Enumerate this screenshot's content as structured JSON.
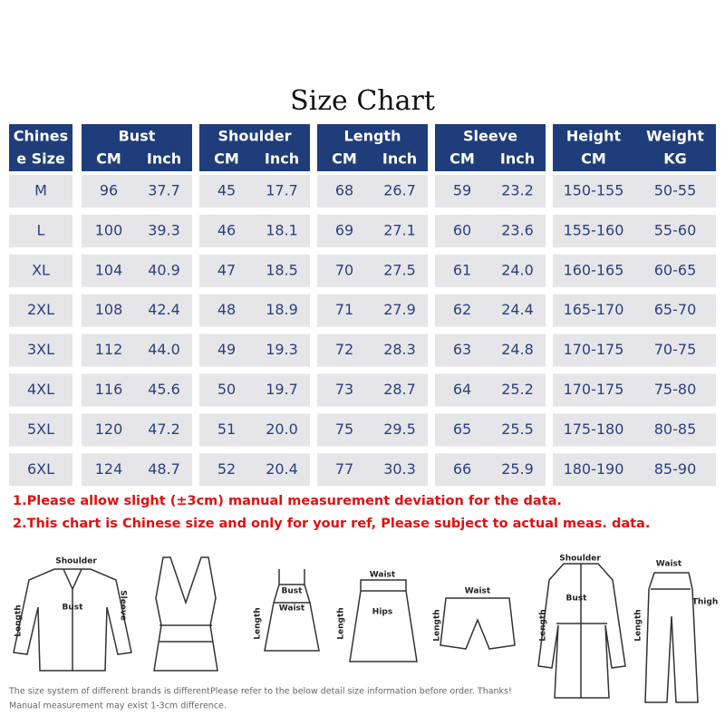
{
  "title": "Size Chart",
  "table": {
    "header_top": [
      "Chines",
      "Bust",
      "Shoulder",
      "Length",
      "Sleeve",
      "Height",
      "Weight"
    ],
    "header_bottom": [
      "e Size",
      "CM",
      "Inch",
      "CM",
      "Inch",
      "CM",
      "Inch",
      "CM",
      "Inch",
      "CM",
      "KG"
    ],
    "rows": [
      [
        "M",
        "96",
        "37.7",
        "45",
        "17.7",
        "68",
        "26.7",
        "59",
        "23.2",
        "150-155",
        "50-55"
      ],
      [
        "L",
        "100",
        "39.3",
        "46",
        "18.1",
        "69",
        "27.1",
        "60",
        "23.6",
        "155-160",
        "55-60"
      ],
      [
        "XL",
        "104",
        "40.9",
        "47",
        "18.5",
        "70",
        "27.5",
        "61",
        "24.0",
        "160-165",
        "60-65"
      ],
      [
        "2XL",
        "108",
        "42.4",
        "48",
        "18.9",
        "71",
        "27.9",
        "62",
        "24.4",
        "165-170",
        "65-70"
      ],
      [
        "3XL",
        "112",
        "44.0",
        "49",
        "19.3",
        "72",
        "28.3",
        "63",
        "24.8",
        "170-175",
        "70-75"
      ],
      [
        "4XL",
        "116",
        "45.6",
        "50",
        "19.7",
        "73",
        "28.7",
        "64",
        "25.2",
        "170-175",
        "75-80"
      ],
      [
        "5XL",
        "120",
        "47.2",
        "51",
        "20.0",
        "75",
        "29.5",
        "65",
        "25.5",
        "175-180",
        "80-85"
      ],
      [
        "6XL",
        "124",
        "48.7",
        "52",
        "20.4",
        "77",
        "30.3",
        "66",
        "25.9",
        "180-190",
        "85-90"
      ]
    ]
  },
  "notes": [
    "1.Please allow slight (±3cm) manual measurement deviation for the data.",
    "2.This chart is Chinese size and only for your ref, Please subject to actual meas. data."
  ],
  "diagrams": [
    {
      "labels": [
        "Shoulder",
        "Bust",
        "Sleeve",
        "Length"
      ]
    },
    {
      "labels": []
    },
    {
      "labels": [
        "Bust",
        "Waist",
        "Length"
      ]
    },
    {
      "labels": [
        "Waist",
        "Hips",
        "Length"
      ]
    },
    {
      "labels": [
        "Waist",
        "Length"
      ]
    },
    {
      "labels": [
        "Shoulder",
        "Bust",
        "Length"
      ]
    },
    {
      "labels": [
        "Waist",
        "Thigh",
        "Length"
      ]
    }
  ],
  "footer": [
    "The size system of different brands is different",
    "Manual measurement may exist 1-3cm difference.",
    "Please refer to the below detail size information before order. Thanks!"
  ]
}
